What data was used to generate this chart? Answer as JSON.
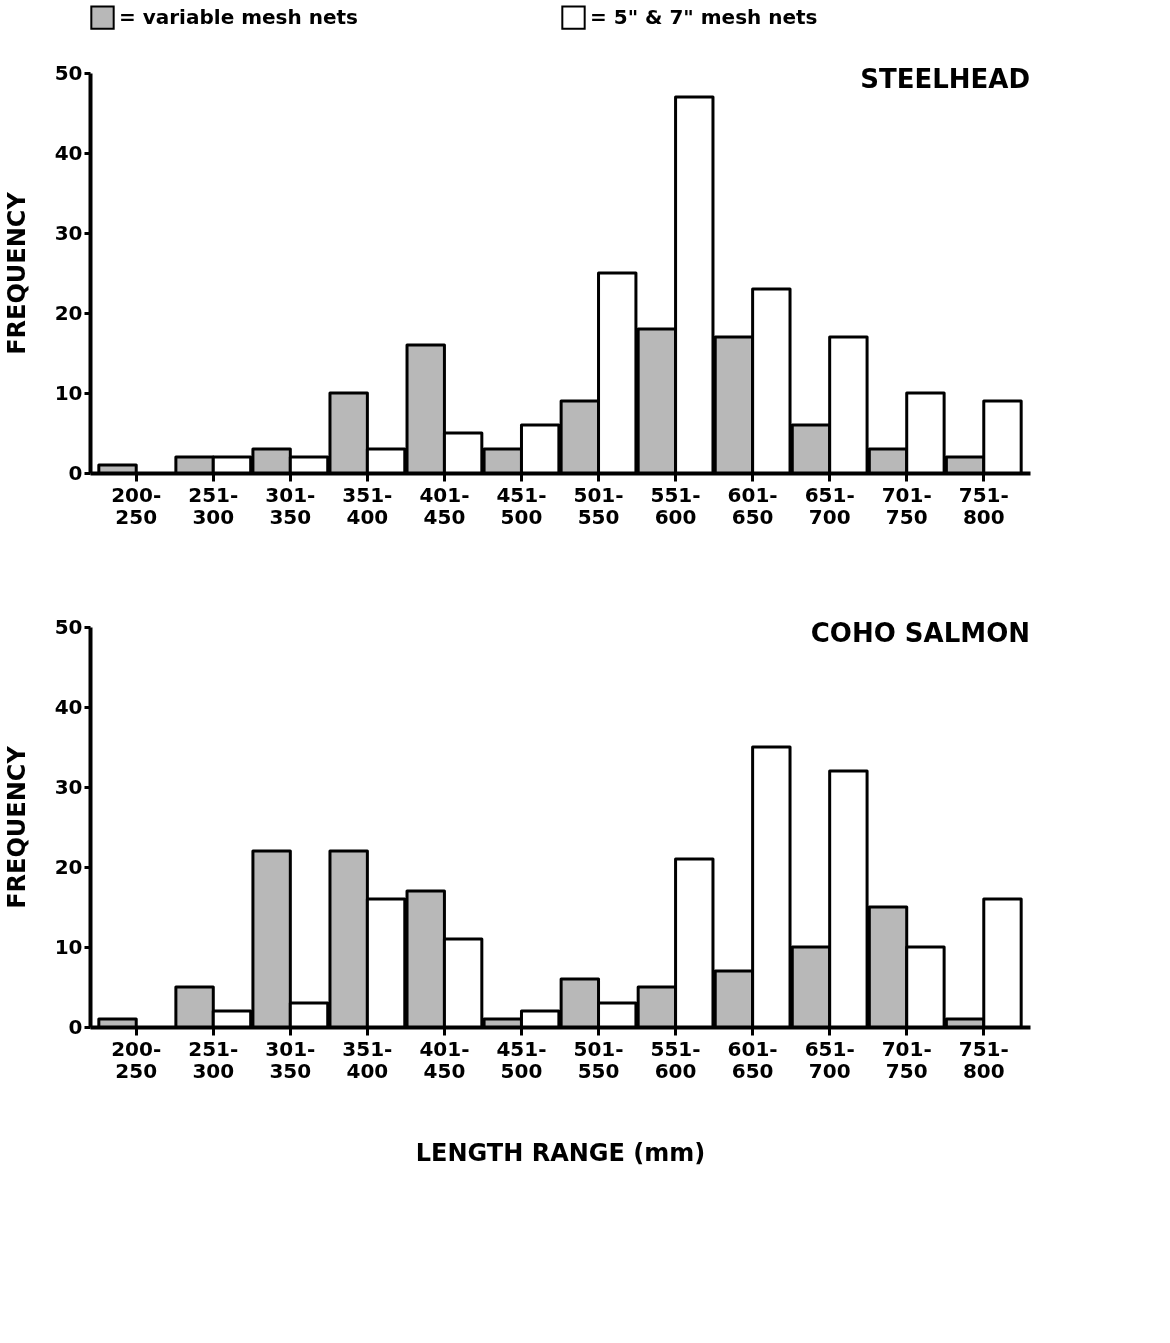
{
  "chart_data": [
    {
      "type": "bar",
      "title": "STEELHEAD",
      "ylabel": "FREQUENCY",
      "categories": [
        "200-250",
        "251-300",
        "301-350",
        "351-400",
        "401-450",
        "451-500",
        "501-550",
        "551-600",
        "601-650",
        "651-700",
        "701-750",
        "751-800"
      ],
      "series": [
        {
          "name": "= variable mesh nets",
          "color": "#b8b8b8",
          "values": [
            1,
            2,
            3,
            10,
            16,
            3,
            9,
            18,
            17,
            6,
            3,
            2
          ]
        },
        {
          "name": "= 5\" & 7\" mesh nets",
          "color": "#ffffff",
          "values": [
            null,
            2,
            2,
            3,
            5,
            6,
            25,
            47,
            23,
            17,
            10,
            9
          ]
        }
      ],
      "ylim": [
        0,
        50
      ],
      "yticks": [
        0,
        10,
        20,
        30,
        40,
        50
      ],
      "grid": false,
      "legend": "top"
    },
    {
      "type": "bar",
      "title": "COHO SALMON",
      "ylabel": "FREQUENCY",
      "xlabel": "LENGTH RANGE (mm)",
      "categories": [
        "200-250",
        "251-300",
        "301-350",
        "351-400",
        "401-450",
        "451-500",
        "501-550",
        "551-600",
        "601-650",
        "651-700",
        "701-750",
        "751-800"
      ],
      "series": [
        {
          "name": "= variable mesh nets",
          "color": "#b8b8b8",
          "values": [
            1,
            5,
            22,
            22,
            17,
            1,
            6,
            5,
            7,
            10,
            15,
            1
          ]
        },
        {
          "name": "= 5\" & 7\" mesh nets",
          "color": "#ffffff",
          "values": [
            null,
            2,
            3,
            16,
            11,
            2,
            3,
            21,
            35,
            32,
            10,
            16
          ]
        }
      ],
      "ylim": [
        0,
        50
      ],
      "yticks": [
        0,
        10,
        20,
        30,
        40,
        50
      ],
      "grid": false,
      "legend": false
    }
  ]
}
